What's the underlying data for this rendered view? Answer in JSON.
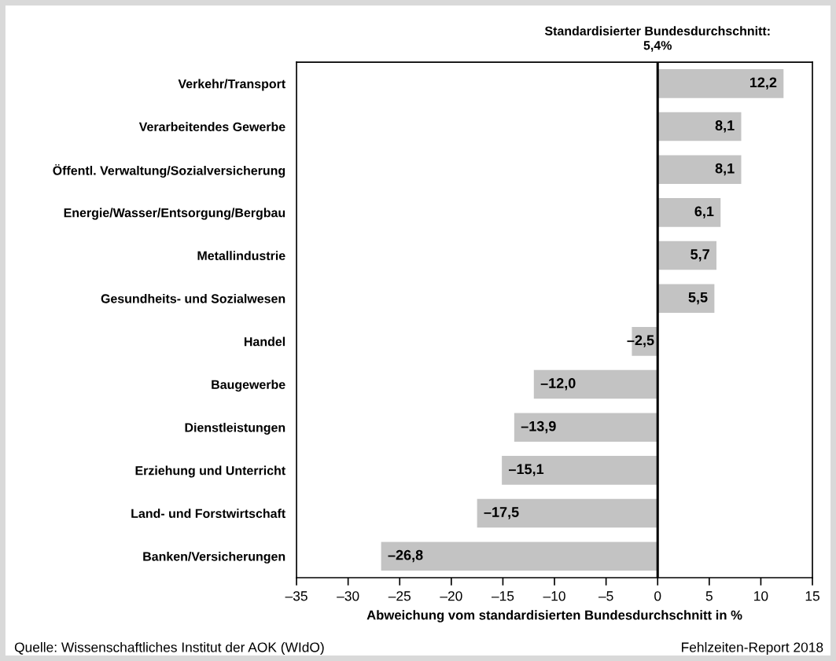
{
  "chart_data": {
    "type": "bar",
    "orientation": "horizontal",
    "categories": [
      "Verkehr/Transport",
      "Verarbeitendes Gewerbe",
      "Öffentl. Verwaltung/Sozialversicherung",
      "Energie/Wasser/Entsorgung/Bergbau",
      "Metallindustrie",
      "Gesundheits- und Sozialwesen",
      "Handel",
      "Baugewerbe",
      "Dienstleistungen",
      "Erziehung und Unterricht",
      "Land- und Forstwirtschaft",
      "Banken/Versicherungen"
    ],
    "values": [
      12.2,
      8.1,
      8.1,
      6.1,
      5.7,
      5.5,
      -2.5,
      -12.0,
      -13.9,
      -15.1,
      -17.5,
      -26.8
    ],
    "value_labels": [
      "12,2",
      "8,1",
      "8,1",
      "6,1",
      "5,7",
      "5,5",
      "–2,5",
      "–12,0",
      "–13,9",
      "–15,1",
      "–17,5",
      "–26,8"
    ],
    "color": "#c3c3c3",
    "xlim": [
      -35,
      15
    ],
    "xticks": [
      {
        "value": -35,
        "label": "–35"
      },
      {
        "value": -30,
        "label": "–30"
      },
      {
        "value": -25,
        "label": "–25"
      },
      {
        "value": -20,
        "label": "–20"
      },
      {
        "value": -15,
        "label": "–15"
      },
      {
        "value": -10,
        "label": "–10"
      },
      {
        "value": -5,
        "label": "–5"
      },
      0,
      5,
      10,
      15
    ],
    "xlabel": "Abweichung vom standardisierten Bundesdurchschnitt in %",
    "ref_lines": [
      {
        "axis": "x",
        "value": 0,
        "color": "#000000"
      }
    ],
    "annotations": [
      "Standardisierter Bundesdurchschnitt:\n5,4%",
      "Quelle: Wissenschaftliches Institut der AOK (WIdO)",
      "Fehlzeiten-Report 2018"
    ],
    "grid": false
  }
}
